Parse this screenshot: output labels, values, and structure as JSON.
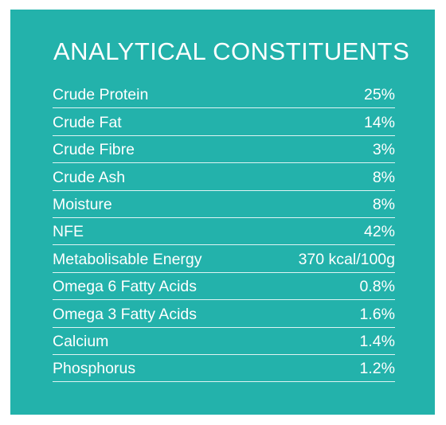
{
  "title": "ANALYTICAL CONSTITUENTS",
  "colors": {
    "panel_background": "#23b2ab",
    "text": "#ffffff"
  },
  "rows": [
    {
      "label": "Crude Protein",
      "value": "25%"
    },
    {
      "label": "Crude Fat",
      "value": "14%"
    },
    {
      "label": "Crude Fibre",
      "value": "3%"
    },
    {
      "label": "Crude Ash",
      "value": "8%"
    },
    {
      "label": "Moisture",
      "value": "8%"
    },
    {
      "label": "NFE",
      "value": "42%"
    },
    {
      "label": "Metabolisable Energy",
      "value": "370 kcal/100g"
    },
    {
      "label": "Omega 6 Fatty Acids",
      "value": "0.8%"
    },
    {
      "label": "Omega 3 Fatty Acids",
      "value": "1.6%"
    },
    {
      "label": "Calcium",
      "value": "1.4%"
    },
    {
      "label": "Phosphorus",
      "value": "1.2%"
    }
  ]
}
